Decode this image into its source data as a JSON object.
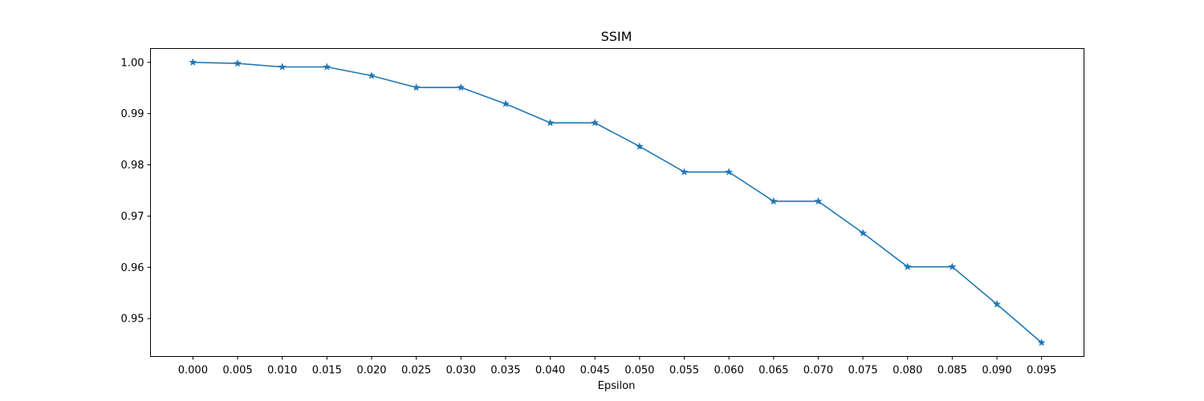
{
  "chart_data": {
    "type": "line",
    "title": "SSIM",
    "xlabel": "Epsilon",
    "ylabel": "",
    "x": [
      0.0,
      0.005,
      0.01,
      0.015,
      0.02,
      0.025,
      0.03,
      0.035,
      0.04,
      0.045,
      0.05,
      0.055,
      0.06,
      0.065,
      0.07,
      0.075,
      0.08,
      0.085,
      0.09,
      0.095
    ],
    "x_tick_labels": [
      "0.000",
      "0.005",
      "0.010",
      "0.015",
      "0.020",
      "0.025",
      "0.030",
      "0.035",
      "0.040",
      "0.045",
      "0.050",
      "0.055",
      "0.060",
      "0.065",
      "0.070",
      "0.075",
      "0.080",
      "0.085",
      "0.090",
      "0.095"
    ],
    "series": [
      {
        "values": [
          1.0,
          0.9998,
          0.9991,
          0.9991,
          0.9974,
          0.9951,
          0.9951,
          0.9919,
          0.9882,
          0.9882,
          0.9836,
          0.9786,
          0.9786,
          0.9729,
          0.9729,
          0.9667,
          0.9601,
          0.9601,
          0.9528,
          0.9453
        ],
        "color": "#1f77b4",
        "marker": "star"
      }
    ],
    "y_ticks": [
      0.95,
      0.96,
      0.97,
      0.98,
      0.99,
      1.0
    ],
    "y_tick_labels": [
      "0.95",
      "0.96",
      "0.97",
      "0.98",
      "0.99",
      "1.00"
    ],
    "xlim": [
      -0.00475,
      0.09975
    ],
    "ylim": [
      0.9426,
      1.0027
    ],
    "grid": false,
    "legend": "none"
  }
}
